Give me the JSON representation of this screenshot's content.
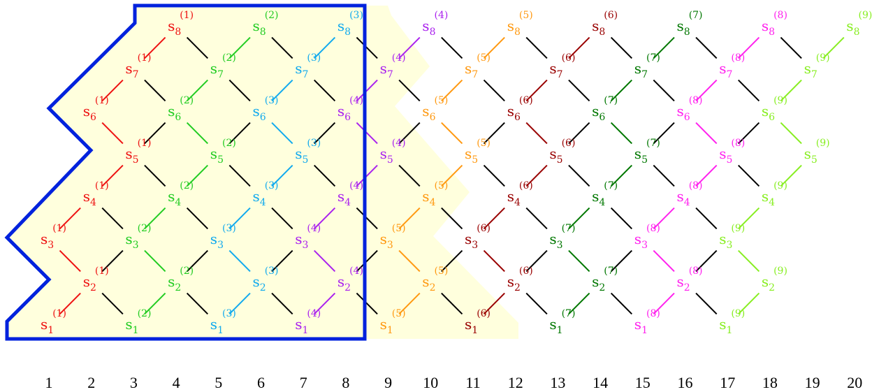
{
  "diagram": {
    "column_numbers": [
      "1",
      "2",
      "3",
      "4",
      "5",
      "6",
      "7",
      "8",
      "9",
      "10",
      "11",
      "12",
      "13",
      "14",
      "15",
      "16",
      "17",
      "18",
      "19",
      "20"
    ],
    "node_symbol": "s",
    "families": [
      {
        "index": 1,
        "superscript": "(1)",
        "color": "#ee1111",
        "start_column": 1
      },
      {
        "index": 2,
        "superscript": "(2)",
        "color": "#22cc22",
        "start_column": 3
      },
      {
        "index": 3,
        "superscript": "(3)",
        "color": "#11aaee",
        "start_column": 5
      },
      {
        "index": 4,
        "superscript": "(4)",
        "color": "#aa22ee",
        "start_column": 7
      },
      {
        "index": 5,
        "superscript": "(5)",
        "color": "#ff9911",
        "start_column": 9
      },
      {
        "index": 6,
        "superscript": "(6)",
        "color": "#990000",
        "start_column": 11
      },
      {
        "index": 7,
        "superscript": "(7)",
        "color": "#007700",
        "start_column": 13
      },
      {
        "index": 8,
        "superscript": "(8)",
        "color": "#ff22ee",
        "start_column": 15
      },
      {
        "index": 9,
        "superscript": "(9)",
        "color": "#88ee22",
        "start_column": 17
      }
    ],
    "subscripts": [
      "1",
      "2",
      "3",
      "4",
      "5",
      "6",
      "7",
      "8"
    ],
    "connector_color": "#000000",
    "highlight_fill": "#ffffdd",
    "boundary_color": "#0022dd"
  }
}
